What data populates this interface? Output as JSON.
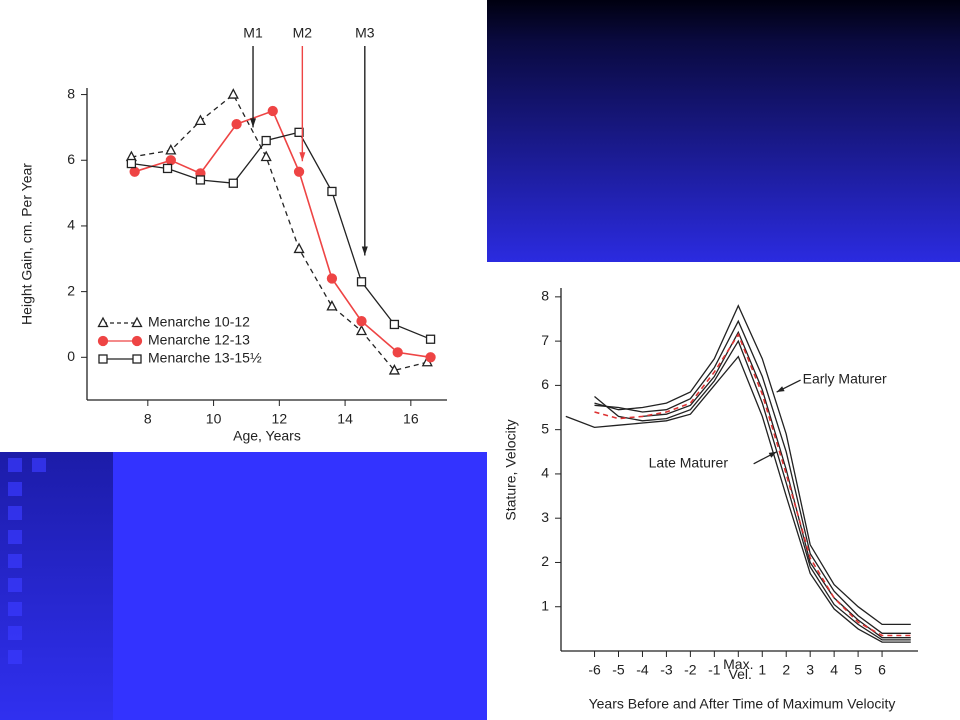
{
  "chart_data": [
    {
      "type": "line",
      "x_label": "Age, Years",
      "y_label": "Height Gain, cm. Per Year",
      "xlim": [
        6.15,
        17.1
      ],
      "ylim": [
        -1.3,
        8.2
      ],
      "xticks": [
        8,
        10,
        12,
        14,
        16
      ],
      "yticks": [
        0,
        2,
        4,
        6,
        8
      ],
      "legend": "lower left",
      "series": [
        {
          "name": "Menarche 10-12",
          "color": "#222222",
          "dash": "dashed",
          "marker": "triangle",
          "x": [
            7.5,
            8.7,
            9.6,
            10.6,
            11.6,
            12.6,
            13.6,
            14.5,
            15.5,
            16.5
          ],
          "values": [
            6.1,
            6.3,
            7.2,
            8.0,
            6.1,
            3.3,
            1.55,
            0.8,
            -0.4,
            -0.15
          ]
        },
        {
          "name": "Menarche 12-13",
          "color": "#ee4444",
          "dash": "solid",
          "marker": "circle",
          "x": [
            7.6,
            8.7,
            9.6,
            10.7,
            11.8,
            12.6,
            13.6,
            14.5,
            15.6,
            16.6
          ],
          "values": [
            5.65,
            6.0,
            5.6,
            7.1,
            7.5,
            5.65,
            2.4,
            1.1,
            0.15,
            0
          ]
        },
        {
          "name": "Menarche 13-15½",
          "color": "#222222",
          "dash": "solid",
          "marker": "square",
          "x": [
            7.5,
            8.6,
            9.6,
            10.6,
            11.6,
            12.6,
            13.6,
            14.5,
            15.5,
            16.6
          ],
          "values": [
            5.9,
            5.75,
            5.4,
            5.3,
            6.6,
            6.85,
            5.05,
            2.3,
            1.0,
            0.55
          ]
        }
      ],
      "annotations": [
        {
          "text": "M1",
          "x": 11.2,
          "y": 7.0,
          "color": "#222222"
        },
        {
          "text": "M2",
          "x": 12.7,
          "y": 5.97,
          "color": "#ee4444"
        },
        {
          "text": "M3",
          "x": 14.6,
          "y": 3.1,
          "color": "#222222"
        }
      ]
    },
    {
      "type": "line",
      "x_label": "Years Before and After Time of Maximum Velocity",
      "y_label": "Stature, Velocity",
      "xlim": [
        -7.4,
        7.5
      ],
      "ylim": [
        0,
        8.2
      ],
      "xticks": [
        -6,
        -5,
        -4,
        -3,
        -2,
        -1,
        {
          "value": 0,
          "label": "Max. Vel."
        },
        1,
        2,
        3,
        4,
        5,
        6
      ],
      "yticks": [
        1,
        2,
        3,
        4,
        5,
        6,
        7,
        8
      ],
      "x": [
        -7.2,
        -6,
        -5,
        -4,
        -3,
        -2,
        -1,
        0,
        1,
        2,
        3,
        4,
        5,
        6,
        7.2
      ],
      "series": [
        {
          "color": "#222222",
          "dash": "solid",
          "values": [
            5.3,
            5.05,
            5.1,
            5.15,
            5.2,
            5.35,
            6.0,
            6.65,
            5.3,
            3.5,
            1.75,
            0.95,
            0.5,
            0.2,
            0.2
          ]
        },
        {
          "color": "#222222",
          "dash": "solid",
          "values": [
            null,
            5.75,
            5.3,
            5.2,
            5.25,
            5.45,
            6.1,
            7.0,
            5.6,
            3.8,
            1.9,
            1.05,
            0.6,
            0.25,
            0.25
          ]
        },
        {
          "color": "#222222",
          "dash": "solid",
          "values": [
            null,
            null,
            null,
            5.3,
            5.35,
            5.55,
            6.2,
            7.2,
            5.9,
            4.1,
            2.0,
            1.2,
            0.7,
            0.3,
            0.3
          ]
        },
        {
          "color": "#222222",
          "dash": "solid",
          "values": [
            null,
            5.55,
            5.5,
            5.4,
            5.45,
            5.7,
            6.4,
            7.45,
            6.2,
            4.5,
            2.2,
            1.35,
            0.8,
            0.4,
            0.4
          ]
        },
        {
          "color": "#222222",
          "dash": "solid",
          "values": [
            null,
            5.6,
            5.45,
            5.5,
            5.6,
            5.85,
            6.6,
            7.8,
            6.6,
            4.9,
            2.4,
            1.5,
            1.0,
            0.6,
            0.6
          ]
        },
        {
          "color": "#dd3333",
          "dash": "dashed",
          "values": [
            null,
            5.4,
            5.25,
            5.3,
            5.4,
            5.6,
            6.3,
            7.15,
            5.8,
            4.0,
            2.1,
            1.2,
            0.65,
            0.35,
            0.35
          ]
        }
      ],
      "annotations": [
        {
          "text": "Early Maturer",
          "x": 1.6,
          "y": 5.85,
          "color": "#222222"
        },
        {
          "text": "Late Maturer",
          "x": 1.6,
          "y": 4.5,
          "color": "#222222"
        }
      ]
    }
  ]
}
